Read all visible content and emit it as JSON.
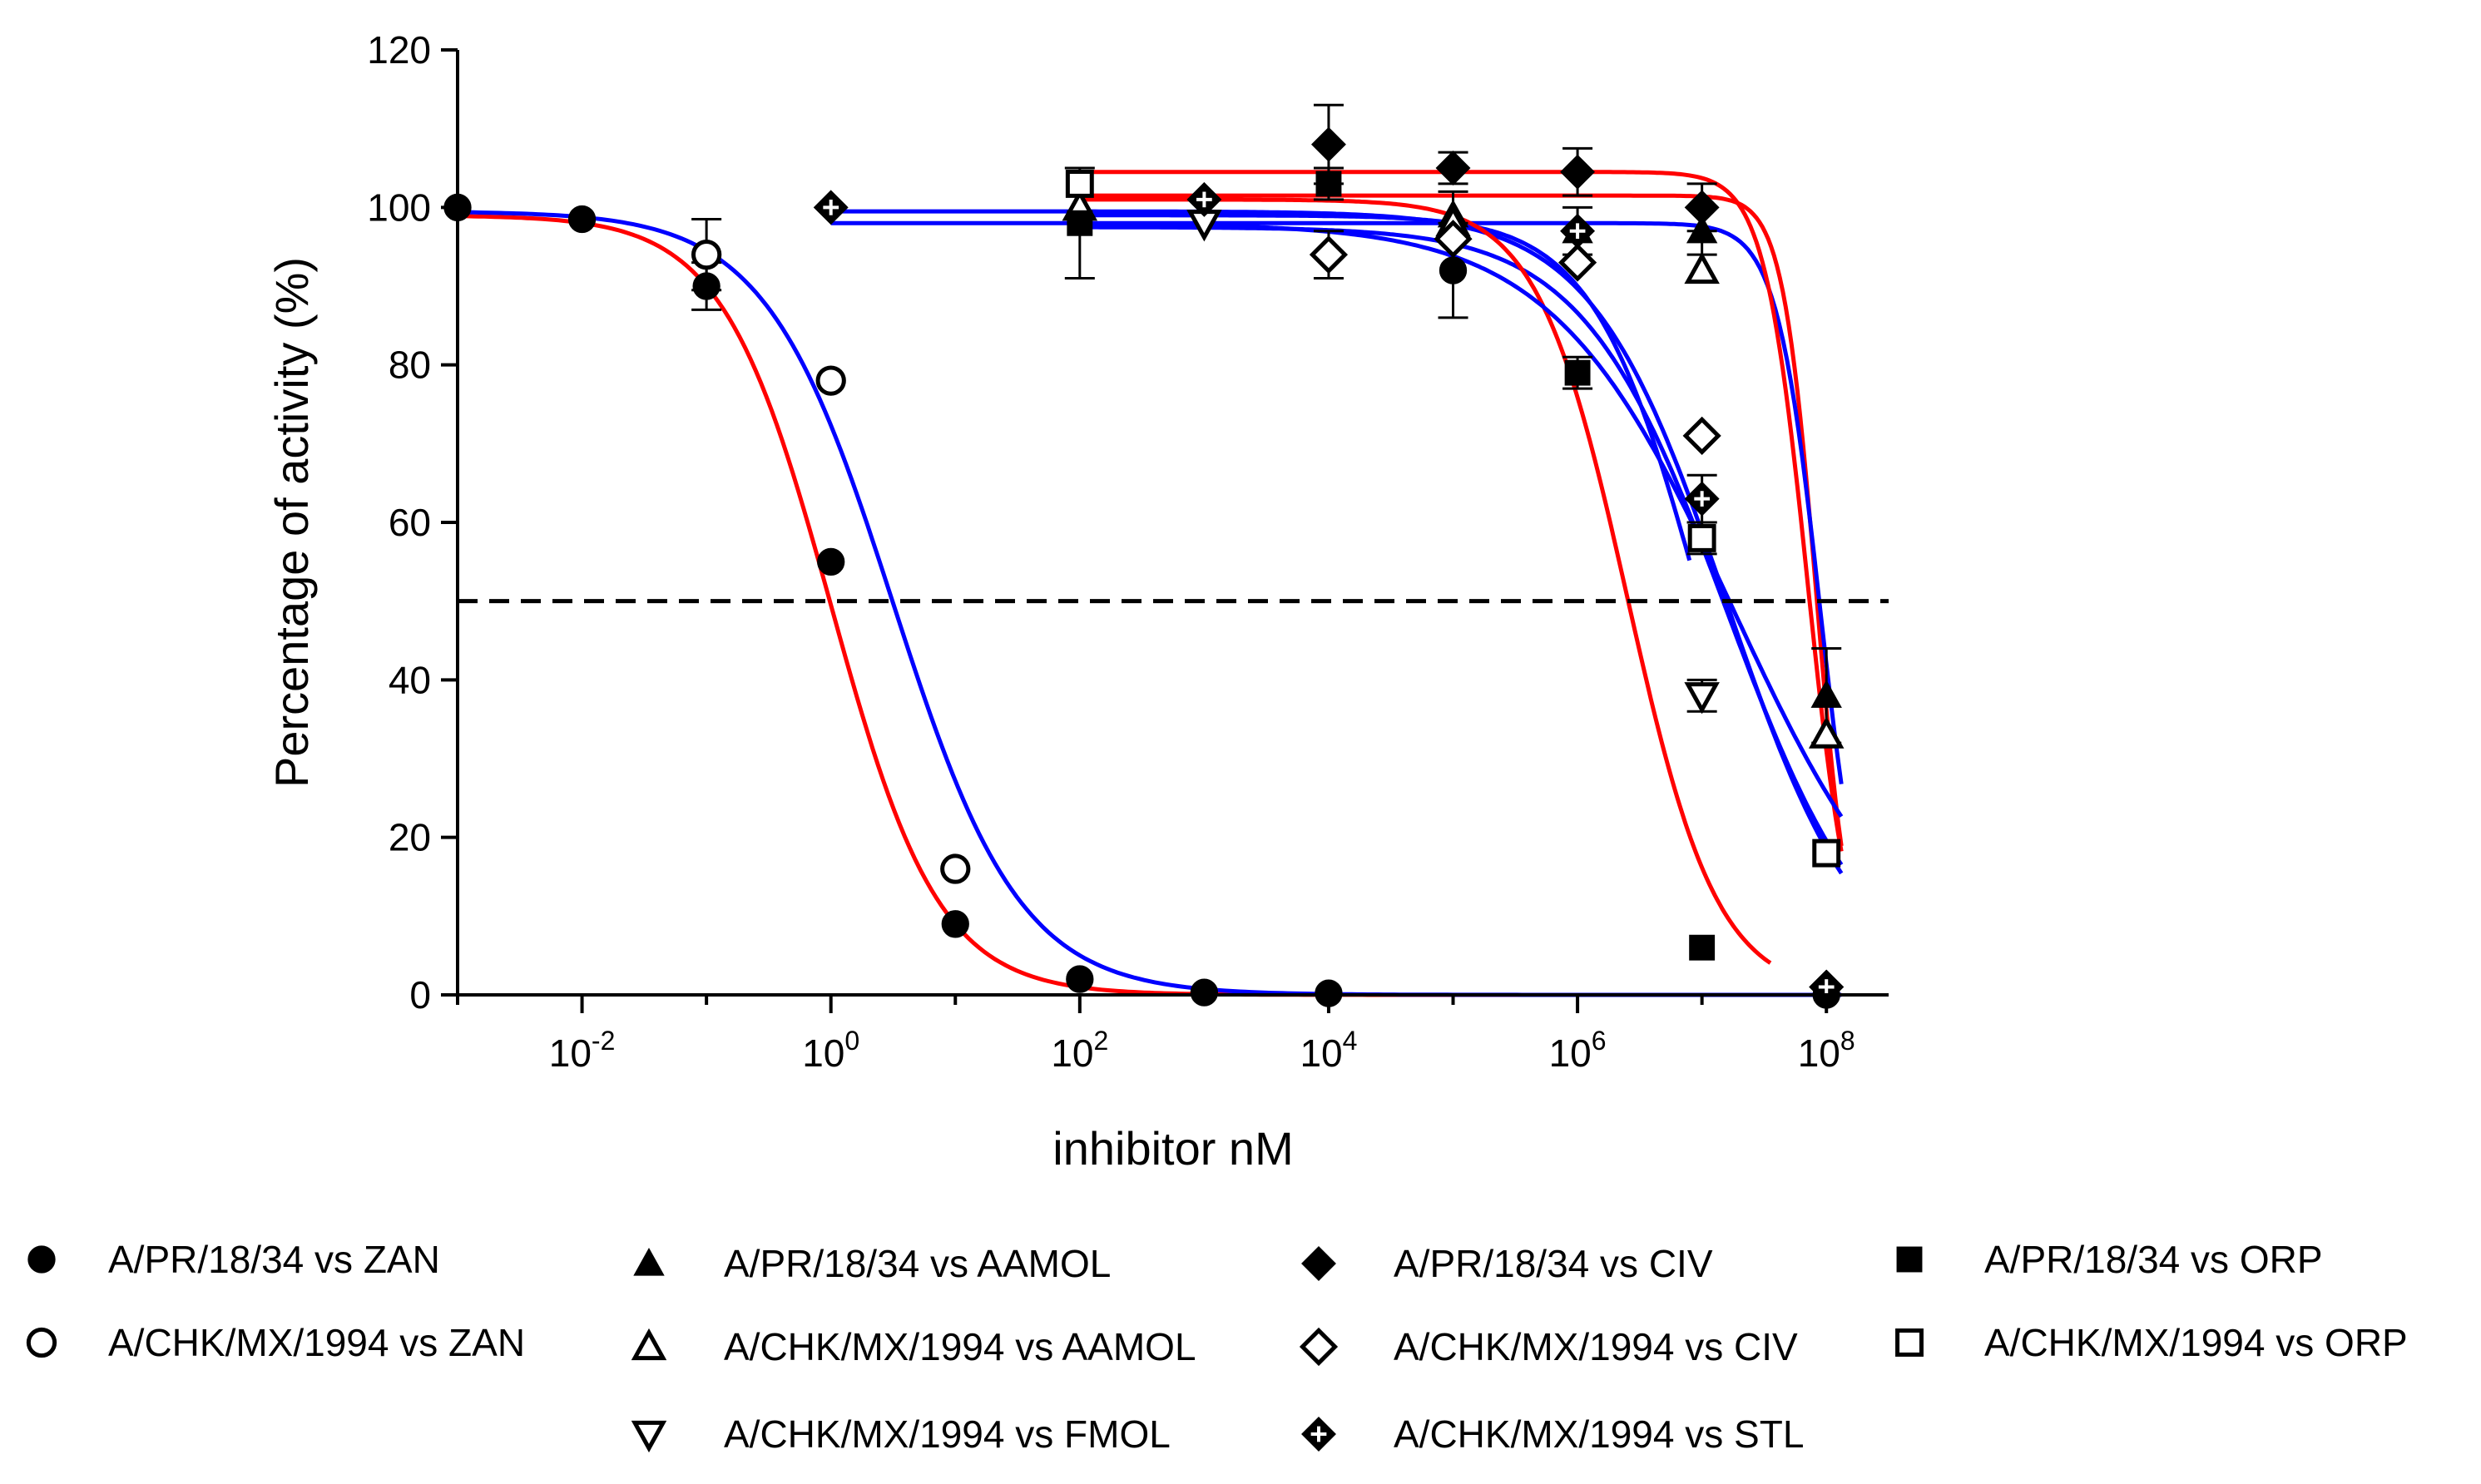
{
  "chart_data": {
    "type": "scatter",
    "title": "",
    "xlabel": "inhibitor nM",
    "ylabel": "Percentage of activity (%)",
    "xscale": "log10",
    "xlim_log10": [
      -3,
      8.5
    ],
    "ylim": [
      0,
      120
    ],
    "yticks": [
      0,
      20,
      40,
      60,
      80,
      100,
      120
    ],
    "xticks": [
      {
        "base": "10",
        "exp": "-2",
        "log": -2
      },
      {
        "base": "10",
        "exp": "0",
        "log": 0
      },
      {
        "base": "10",
        "exp": "2",
        "log": 2
      },
      {
        "base": "10",
        "exp": "4",
        "log": 4
      },
      {
        "base": "10",
        "exp": "6",
        "log": 6
      },
      {
        "base": "10",
        "exp": "8",
        "log": 8
      }
    ],
    "reference_line": {
      "y": 50,
      "style": "dashed"
    },
    "series": [
      {
        "name": "A/PR/18/34 vs ZAN",
        "marker": "circle-filled",
        "curve_color": "#ff0000",
        "fit": {
          "top": 99,
          "bottom": 0,
          "logIC50": 0.0,
          "hill": 1.0
        },
        "points": [
          [
            -3,
            100,
            null
          ],
          [
            -2,
            98.5,
            null
          ],
          [
            -1,
            90,
            3
          ],
          [
            0,
            55,
            null
          ],
          [
            1,
            9,
            null
          ],
          [
            2,
            2,
            null
          ],
          [
            3,
            0.3,
            null
          ],
          [
            4,
            0.2,
            null
          ],
          [
            5,
            92,
            6
          ],
          [
            8,
            0,
            null
          ]
        ]
      },
      {
        "name": "A/CHK/MX/1994 vs ZAN",
        "marker": "circle-open",
        "curve_color": "#0000ff",
        "fit": {
          "top": 99.5,
          "bottom": 0,
          "logIC50": 0.5,
          "hill": 0.85
        },
        "points": [
          [
            -1,
            94,
            4.5
          ],
          [
            0,
            78,
            null
          ],
          [
            1,
            16,
            null
          ]
        ]
      },
      {
        "name": "A/PR/18/34 vs AAMOL",
        "marker": "triangle-up-filled",
        "curve_color": "#ff0000",
        "fit": {
          "top": 101.5,
          "bottom": 0,
          "logIC50": 7.92,
          "hill": 3.2,
          "start": 2
        },
        "points": [
          [
            5,
            99,
            3
          ],
          [
            6,
            97,
            3
          ],
          [
            7,
            97,
            3
          ],
          [
            8,
            38,
            6
          ]
        ]
      },
      {
        "name": "A/CHK/MX/1994 vs AAMOL",
        "marker": "triangle-up-open",
        "curve_color": "#0000ff",
        "fit": {
          "top": 98,
          "bottom": 0,
          "logIC50": 7.95,
          "hill": 2.5,
          "start": 0
        },
        "points": [
          [
            2,
            100,
            null
          ],
          [
            5,
            98,
            null
          ],
          [
            7,
            92,
            null
          ],
          [
            8,
            33,
            null
          ]
        ]
      },
      {
        "name": "A/PR/18/34 vs CIV",
        "marker": "diamond-filled",
        "curve_color": "#ff0000",
        "fit": {
          "top": 104.5,
          "bottom": 0,
          "logIC50": 7.85,
          "hill": 2.5,
          "start": 2
        },
        "points": [
          [
            4,
            108,
            5
          ],
          [
            5,
            105,
            2
          ],
          [
            6,
            104.5,
            3
          ],
          [
            7,
            100,
            3
          ],
          [
            8,
            1,
            null
          ]
        ]
      },
      {
        "name": "A/CHK/MX/1994 vs CIV",
        "marker": "diamond-open",
        "curve_color": "#0000ff",
        "fit": {
          "top": 97.5,
          "bottom": 0,
          "logIC50": 7.2,
          "hill": 0.75,
          "start": 2
        },
        "points": [
          [
            4,
            94,
            3
          ],
          [
            5,
            96,
            null
          ],
          [
            6,
            93,
            null
          ],
          [
            7,
            71,
            null
          ]
        ]
      },
      {
        "name": "A/CHK/MX/1994 vs FMOL",
        "marker": "triangle-down-open",
        "curve_color": "#0000ff",
        "fit": {
          "top": 99,
          "bottom": 0,
          "logIC50": 7.0,
          "hill": 1.0,
          "start": 2,
          "end": 6.9
        },
        "points": [
          [
            3,
            98,
            null
          ],
          [
            7,
            38,
            2
          ]
        ]
      },
      {
        "name": "A/CHK/MX/1994 vs STL",
        "marker": "diamond-cross",
        "curve_color": "#0000ff",
        "fit": {
          "top": 99.5,
          "bottom": 0,
          "logIC50": 7.2,
          "hill": 0.8,
          "start": 0
        },
        "points": [
          [
            0,
            100,
            null
          ],
          [
            3,
            101,
            null
          ],
          [
            6,
            97,
            null
          ],
          [
            7,
            63,
            3
          ],
          [
            8,
            1,
            null
          ]
        ]
      },
      {
        "name": "A/PR/18/34 vs ORP",
        "marker": "square-filled",
        "curve_color": "#ff0000",
        "fit": {
          "top": 101,
          "bottom": 0,
          "logIC50": 6.4,
          "hill": 1.2,
          "start": 2,
          "end": 7.55
        },
        "points": [
          [
            2,
            98,
            7
          ],
          [
            4,
            103,
            2
          ],
          [
            6,
            79,
            2
          ],
          [
            7,
            6,
            null
          ]
        ]
      },
      {
        "name": "A/CHK/MX/1994 vs ORP",
        "marker": "square-open",
        "curve_color": "#0000ff",
        "fit": {
          "top": 98,
          "bottom": 0,
          "logIC50": 7.25,
          "hill": 0.6,
          "start": 2
        },
        "points": [
          [
            2,
            103,
            null
          ],
          [
            7,
            58,
            2
          ],
          [
            8,
            18,
            null
          ]
        ]
      }
    ],
    "legend": {
      "placement": "bottom",
      "entries": [
        {
          "label": "A/PR/18/34 vs ZAN",
          "marker": "circle-filled"
        },
        {
          "label": "A/CHK/MX/1994 vs ZAN",
          "marker": "circle-open"
        },
        {
          "label": "A/PR/18/34 vs AAMOL",
          "marker": "triangle-up-filled"
        },
        {
          "label": "A/CHK/MX/1994 vs AAMOL",
          "marker": "triangle-up-open"
        },
        {
          "label": "A/CHK/MX/1994 vs FMOL",
          "marker": "triangle-down-open"
        },
        {
          "label": "A/PR/18/34 vs CIV",
          "marker": "diamond-filled"
        },
        {
          "label": "A/CHK/MX/1994 vs CIV",
          "marker": "diamond-open"
        },
        {
          "label": "A/CHK/MX/1994 vs STL",
          "marker": "diamond-cross"
        },
        {
          "label": "A/PR/18/34 vs ORP",
          "marker": "square-filled"
        },
        {
          "label": "A/CHK/MX/1994 vs ORP",
          "marker": "square-open"
        }
      ]
    }
  }
}
